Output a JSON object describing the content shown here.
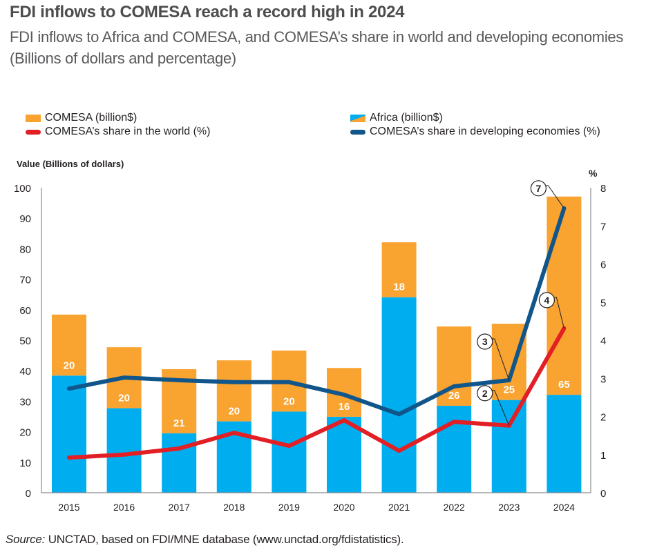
{
  "header": {
    "title": "FDI inflows to COMESA reach a record high in 2024",
    "subtitle": "FDI inflows to Africa and COMESA, and COMESA’s share in world and developing economies",
    "units": "(Billions of dollars and percentage)"
  },
  "legend": {
    "comesa": "COMESA (billion$)",
    "africa": "Africa (billion$)",
    "share_world": "COMESA’s share in the world  (%)",
    "share_developing": "COMESA’s share in developing economies (%)"
  },
  "colors": {
    "comesa": "#f9a331",
    "africa": "#00aeef",
    "share_world": "#e31f26",
    "share_developing": "#11568a"
  },
  "source": {
    "label": "Source:",
    "text": " UNCTAD, based on FDI/MNE database (www.unctad.org/fdistatistics)."
  },
  "chart_data": {
    "type": "bar",
    "subtype": "stacked bar with two line series on secondary axis",
    "title": "FDI inflows to COMESA reach a record high in 2024",
    "ylabel": "Value (Billions of dollars)",
    "y2label": "%",
    "ylim": [
      0,
      100
    ],
    "y2lim": [
      0,
      8
    ],
    "yticks": [
      0,
      10,
      20,
      30,
      40,
      50,
      60,
      70,
      80,
      90,
      100
    ],
    "y2ticks": [
      0,
      1,
      2,
      3,
      4,
      5,
      6,
      7,
      8
    ],
    "grid": false,
    "legend_position": "top",
    "categories": [
      "2015",
      "2016",
      "2017",
      "2018",
      "2019",
      "2020",
      "2021",
      "2022",
      "2023",
      "2024"
    ],
    "series": [
      {
        "name": "Africa (billion$)",
        "kind": "bar-total",
        "axis": "left",
        "values": [
          58.4,
          47.7,
          40.5,
          43.4,
          46.6,
          40.9,
          82.1,
          54.5,
          55.4,
          97.1
        ]
      },
      {
        "name": "COMESA (billion$)",
        "kind": "bar-segment-top",
        "axis": "left",
        "values": [
          20,
          20,
          21,
          20,
          20,
          16,
          18,
          26,
          25,
          65
        ],
        "data_labels": [
          "20",
          "20",
          "21",
          "20",
          "20",
          "16",
          "18",
          "26",
          "25",
          "65"
        ]
      },
      {
        "name": "COMESA’s share in the world  (%)",
        "kind": "line",
        "axis": "right",
        "values": [
          0.92,
          1.0,
          1.16,
          1.57,
          1.23,
          1.9,
          1.1,
          1.86,
          1.76,
          4.31
        ]
      },
      {
        "name": "COMESA’s share in developing economies (%)",
        "kind": "line",
        "axis": "right",
        "values": [
          2.73,
          3.02,
          2.95,
          2.9,
          2.9,
          2.57,
          2.06,
          2.79,
          2.95,
          7.46
        ]
      }
    ],
    "annotations": [
      {
        "text": "2",
        "series": "COMESA’s share in the world  (%)",
        "category": "2023"
      },
      {
        "text": "3",
        "series": "COMESA’s share in developing economies (%)",
        "category": "2023"
      },
      {
        "text": "4",
        "series": "COMESA’s share in the world  (%)",
        "category": "2024"
      },
      {
        "text": "7",
        "series": "COMESA’s share in developing economies (%)",
        "category": "2024"
      }
    ]
  }
}
